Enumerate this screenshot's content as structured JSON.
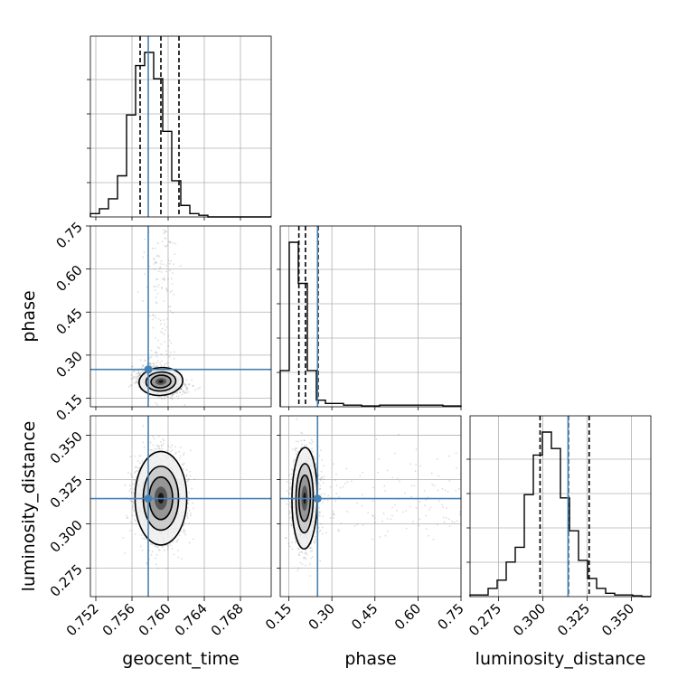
{
  "chart_data": {
    "type": "scatter",
    "kind": "corner-plot",
    "parameters": [
      "geocent_time",
      "phase",
      "luminosity_distance"
    ],
    "truths": {
      "geocent_time": 0.7578,
      "phase": 0.25,
      "luminosity_distance": 0.3143
    },
    "quantiles": {
      "geocent_time": [
        0.7569,
        0.7592,
        0.7612
      ],
      "phase": [
        0.185,
        0.208,
        0.252
      ],
      "luminosity_distance": [
        0.2985,
        0.3145,
        0.3262
      ]
    },
    "axes": {
      "geocent_time": {
        "range": [
          0.7514,
          0.7714
        ],
        "ticks": [
          0.752,
          0.756,
          0.76,
          0.764,
          0.768
        ],
        "tick_labels": [
          "0.752",
          "0.756",
          "0.760",
          "0.764",
          "0.768"
        ]
      },
      "phase": {
        "range": [
          0.12,
          0.75
        ],
        "ticks": [
          0.15,
          0.3,
          0.45,
          0.6,
          0.75
        ],
        "tick_labels": [
          "0.15",
          "0.30",
          "0.45",
          "0.60",
          "0.75"
        ]
      },
      "luminosity_distance": {
        "range": [
          0.259,
          0.361
        ],
        "ticks": [
          0.275,
          0.3,
          0.325,
          0.35
        ],
        "tick_labels": [
          "0.275",
          "0.300",
          "0.325",
          "0.350"
        ]
      }
    },
    "histograms": {
      "geocent_time": {
        "range": [
          0.7514,
          0.7714
        ],
        "counts": [
          0.02,
          0.05,
          0.11,
          0.25,
          0.62,
          0.92,
          1.0,
          0.84,
          0.52,
          0.22,
          0.07,
          0.02,
          0.01,
          0,
          0,
          0,
          0,
          0,
          0,
          0
        ]
      },
      "phase": {
        "range": [
          0.12,
          0.75
        ],
        "counts": [
          0.22,
          1.0,
          0.75,
          0.22,
          0.04,
          0.02,
          0.02,
          0.01,
          0.01,
          0.005,
          0.005,
          0.01,
          0.01,
          0.01,
          0.01,
          0.01,
          0.01,
          0.01,
          0.005,
          0.005
        ]
      },
      "luminosity_distance": {
        "range": [
          0.259,
          0.361
        ],
        "counts": [
          0.01,
          0.01,
          0.05,
          0.1,
          0.21,
          0.3,
          0.62,
          0.86,
          1.0,
          0.9,
          0.6,
          0.4,
          0.22,
          0.11,
          0.05,
          0.02,
          0.01,
          0.01,
          0.005,
          0
        ]
      }
    },
    "grid": true,
    "scatter_color": "#808080",
    "contour_color": "#000000",
    "truth_color": "#4682b4"
  }
}
